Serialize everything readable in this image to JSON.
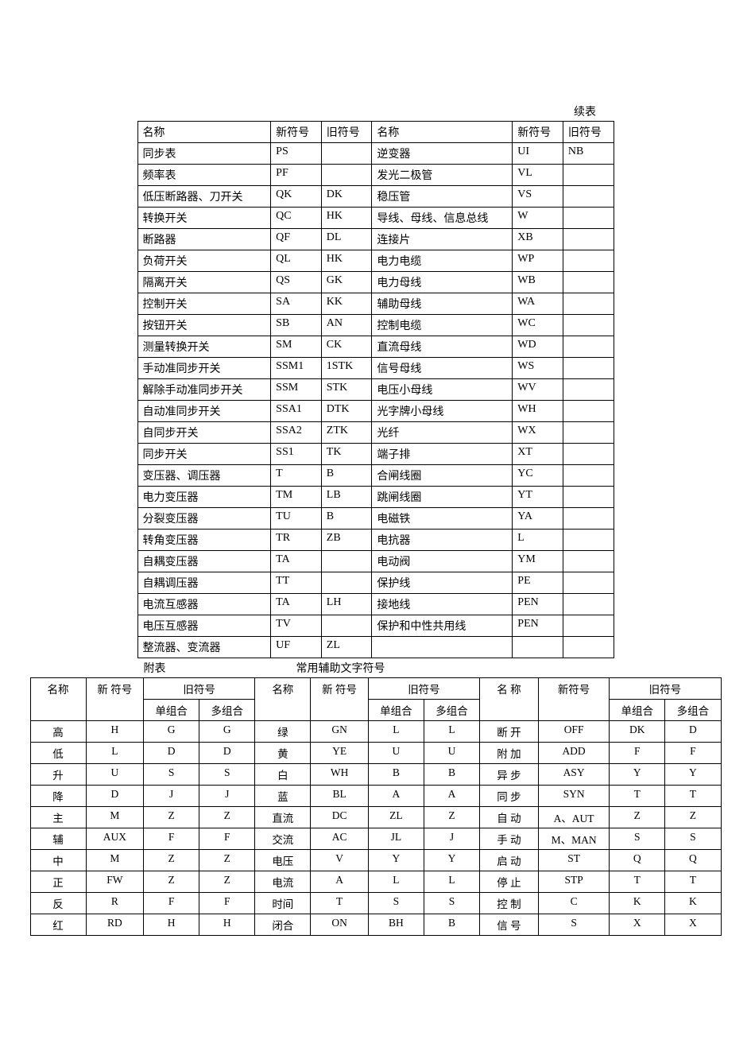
{
  "top_label": "续表",
  "t1_headers": [
    "名称",
    "新符号",
    "旧符号",
    "名称",
    "新符号",
    "旧符号"
  ],
  "t1_rows": [
    [
      "同步表",
      "PS",
      "",
      "逆变器",
      "UI",
      "NB"
    ],
    [
      "频率表",
      "PF",
      "",
      "发光二极管",
      "VL",
      ""
    ],
    [
      "低压断路器、刀开关",
      "QK",
      "DK",
      "稳压管",
      "VS",
      ""
    ],
    [
      "转换开关",
      "QC",
      "HK",
      "导线、母线、信息总线",
      "W",
      ""
    ],
    [
      "断路器",
      "QF",
      "DL",
      "连接片",
      "XB",
      ""
    ],
    [
      "负荷开关",
      "QL",
      "HK",
      "电力电缆",
      "WP",
      ""
    ],
    [
      "隔离开关",
      "QS",
      "GK",
      "电力母线",
      "WB",
      ""
    ],
    [
      "控制开关",
      "SA",
      "KK",
      "辅助母线",
      "WA",
      ""
    ],
    [
      "按钮开关",
      "SB",
      "AN",
      "控制电缆",
      "WC",
      ""
    ],
    [
      "测量转换开关",
      "SM",
      "CK",
      "直流母线",
      "WD",
      ""
    ],
    [
      "手动准同步开关",
      "SSM1",
      "1STK",
      "信号母线",
      "WS",
      ""
    ],
    [
      "解除手动准同步开关",
      "SSM",
      "STK",
      "电压小母线",
      "WV",
      ""
    ],
    [
      "自动准同步开关",
      "SSA1",
      "DTK",
      "光字牌小母线",
      "WH",
      ""
    ],
    [
      "自同步开关",
      "SSA2",
      "ZTK",
      "光纤",
      "WX",
      ""
    ],
    [
      "同步开关",
      "SS1",
      "TK",
      "端子排",
      "XT",
      ""
    ],
    [
      "变压器、调压器",
      "T",
      "B",
      "合闸线圈",
      "YC",
      ""
    ],
    [
      "电力变压器",
      "TM",
      "LB",
      "跳闸线圈",
      "YT",
      ""
    ],
    [
      "分裂变压器",
      "TU",
      "B",
      "电磁铁",
      "YA",
      ""
    ],
    [
      "转角变压器",
      "TR",
      "ZB",
      "电抗器",
      "L",
      ""
    ],
    [
      "自耦变压器",
      "TA",
      "",
      "电动阀",
      "YM",
      ""
    ],
    [
      "自耦调压器",
      "TT",
      "",
      "保护线",
      "PE",
      ""
    ],
    [
      "电流互感器",
      "TA",
      "LH",
      "接地线",
      "PEN",
      ""
    ],
    [
      "电压互感器",
      "TV",
      "",
      "保护和中性共用线",
      "PEN",
      ""
    ],
    [
      "整流器、变流器",
      "UF",
      "ZL",
      "",
      "",
      ""
    ]
  ],
  "mid_left": "附表",
  "mid_center": "常用辅助文字符号",
  "t2_h1": [
    "名称",
    "新 符号",
    "旧符号",
    "名称",
    "新 符号",
    "旧符号",
    "名 称",
    "新符号",
    "旧符号"
  ],
  "t2_h2": [
    "单组合",
    "多组合",
    "单组合",
    "多组合",
    "单组合",
    "多组合"
  ],
  "t2_rows": [
    [
      "高",
      "H",
      "G",
      "G",
      "绿",
      "GN",
      "L",
      "L",
      "断 开",
      "OFF",
      "DK",
      "D"
    ],
    [
      "低",
      "L",
      "D",
      "D",
      "黄",
      "YE",
      "U",
      "U",
      "附 加",
      "ADD",
      "F",
      "F"
    ],
    [
      "升",
      "U",
      "S",
      "S",
      "白",
      "WH",
      "B",
      "B",
      "异 步",
      "ASY",
      "Y",
      "Y"
    ],
    [
      "降",
      "D",
      "J",
      "J",
      "蓝",
      "BL",
      "A",
      "A",
      "同 步",
      "SYN",
      "T",
      "T"
    ],
    [
      "主",
      "M",
      "Z",
      "Z",
      "直流",
      "DC",
      "ZL",
      "Z",
      "自 动",
      "A、AUT",
      "Z",
      "Z"
    ],
    [
      "辅",
      "AUX",
      "F",
      "F",
      "交流",
      "AC",
      "JL",
      "J",
      "手 动",
      "M、MAN",
      "S",
      "S"
    ],
    [
      "中",
      "M",
      "Z",
      "Z",
      "电压",
      "V",
      "Y",
      "Y",
      "启 动",
      "ST",
      "Q",
      "Q"
    ],
    [
      "正",
      "FW",
      "Z",
      "Z",
      "电流",
      "A",
      "L",
      "L",
      "停 止",
      "STP",
      "T",
      "T"
    ],
    [
      "反",
      "R",
      "F",
      "F",
      "时间",
      "T",
      "S",
      "S",
      "控 制",
      "C",
      "K",
      "K"
    ],
    [
      "红",
      "RD",
      "H",
      "H",
      "闭合",
      "ON",
      "BH",
      "B",
      "信 号",
      "S",
      "X",
      "X"
    ]
  ]
}
